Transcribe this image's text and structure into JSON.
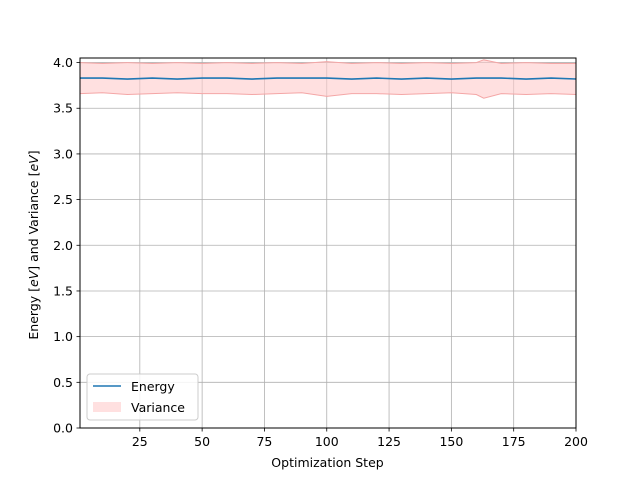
{
  "chart_data": {
    "type": "line",
    "xlabel": "Optimization Step",
    "ylabel_parts": [
      "Energy [",
      "eV",
      "] and Variance [",
      "eV",
      "]"
    ],
    "xlim": [
      1,
      200
    ],
    "ylim": [
      0.0,
      4.05
    ],
    "xticks": [
      25,
      50,
      75,
      100,
      125,
      150,
      175,
      200
    ],
    "xtick_labels": [
      "25",
      "50",
      "75",
      "100",
      "125",
      "150",
      "175",
      "200"
    ],
    "yticks": [
      0.0,
      0.5,
      1.0,
      1.5,
      2.0,
      2.5,
      3.0,
      3.5,
      4.0
    ],
    "ytick_labels": [
      "0.0",
      "0.5",
      "1.0",
      "1.5",
      "2.0",
      "2.5",
      "3.0",
      "3.5",
      "4.0"
    ],
    "grid": true,
    "legend_position": "lower-left",
    "series": [
      {
        "name": "Energy",
        "kind": "line",
        "color": "#1f77b4",
        "x": [
          1,
          10,
          20,
          30,
          40,
          50,
          60,
          70,
          80,
          90,
          100,
          110,
          120,
          130,
          140,
          150,
          160,
          170,
          180,
          190,
          200
        ],
        "y": [
          3.83,
          3.83,
          3.82,
          3.83,
          3.82,
          3.83,
          3.83,
          3.82,
          3.83,
          3.83,
          3.83,
          3.82,
          3.83,
          3.82,
          3.83,
          3.82,
          3.83,
          3.83,
          3.82,
          3.83,
          3.82
        ]
      },
      {
        "name": "Variance",
        "kind": "band",
        "color": "#ffcccc",
        "edge_color": "#f4a6a6",
        "x": [
          1,
          10,
          20,
          30,
          40,
          50,
          60,
          70,
          80,
          90,
          100,
          110,
          120,
          130,
          140,
          150,
          160,
          163,
          170,
          180,
          190,
          200
        ],
        "upper": [
          4.0,
          3.99,
          4.0,
          3.99,
          4.0,
          3.99,
          4.0,
          3.99,
          4.0,
          3.99,
          4.01,
          3.99,
          4.0,
          3.99,
          4.0,
          3.99,
          4.0,
          4.03,
          3.99,
          4.0,
          3.99,
          3.99
        ],
        "lower": [
          3.66,
          3.67,
          3.65,
          3.66,
          3.67,
          3.66,
          3.66,
          3.65,
          3.66,
          3.67,
          3.63,
          3.66,
          3.66,
          3.65,
          3.66,
          3.67,
          3.65,
          3.61,
          3.66,
          3.65,
          3.66,
          3.65
        ]
      }
    ]
  }
}
